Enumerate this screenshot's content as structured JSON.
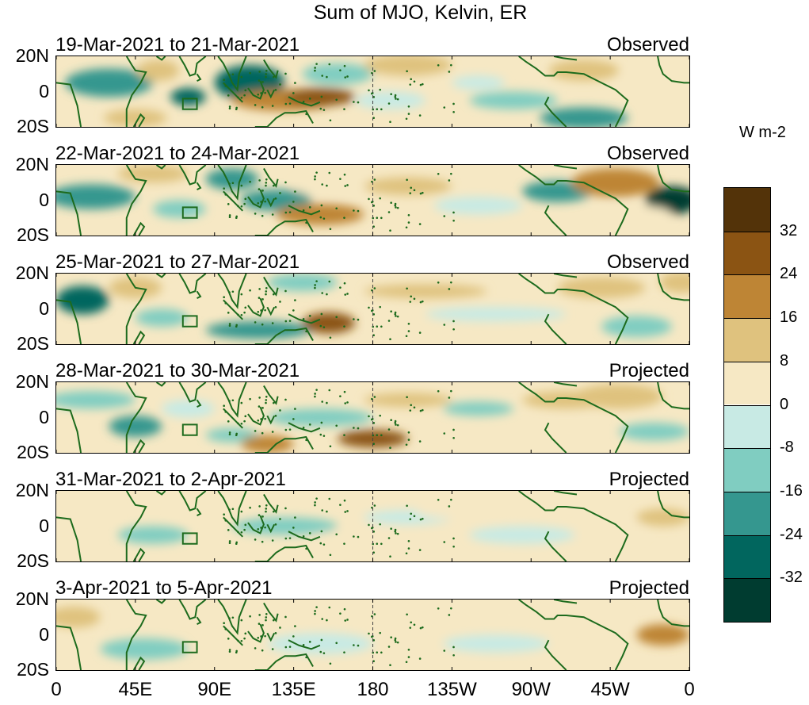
{
  "title": "Sum of MJO, Kelvin, ER",
  "units": "W m-2",
  "lat_labels": [
    "20N",
    "0",
    "20S"
  ],
  "lon_labels": [
    "0",
    "45E",
    "90E",
    "135E",
    "180",
    "135W",
    "90W",
    "45W",
    "0"
  ],
  "panels": [
    {
      "dates": "19-Mar-2021 to 21-Mar-2021",
      "status": "Observed"
    },
    {
      "dates": "22-Mar-2021 to 24-Mar-2021",
      "status": "Observed"
    },
    {
      "dates": "25-Mar-2021 to 27-Mar-2021",
      "status": "Observed"
    },
    {
      "dates": "28-Mar-2021 to 30-Mar-2021",
      "status": "Projected"
    },
    {
      "dates": "31-Mar-2021 to 2-Apr-2021",
      "status": "Projected"
    },
    {
      "dates": "3-Apr-2021 to 5-Apr-2021",
      "status": "Projected"
    }
  ],
  "colorbar": {
    "labels": [
      "32",
      "24",
      "16",
      "8",
      "0",
      "-8",
      "-16",
      "-24",
      "-32"
    ],
    "colors": [
      "#533309",
      "#8b5413",
      "#be8535",
      "#dfc27e",
      "#f6e8c4",
      "#c8eae4",
      "#80cdc1",
      "#35978f",
      "#01665e",
      "#003c30"
    ]
  },
  "map_colors": {
    "land_outline": "#1d6b1d",
    "dateline": "#444444"
  }
}
